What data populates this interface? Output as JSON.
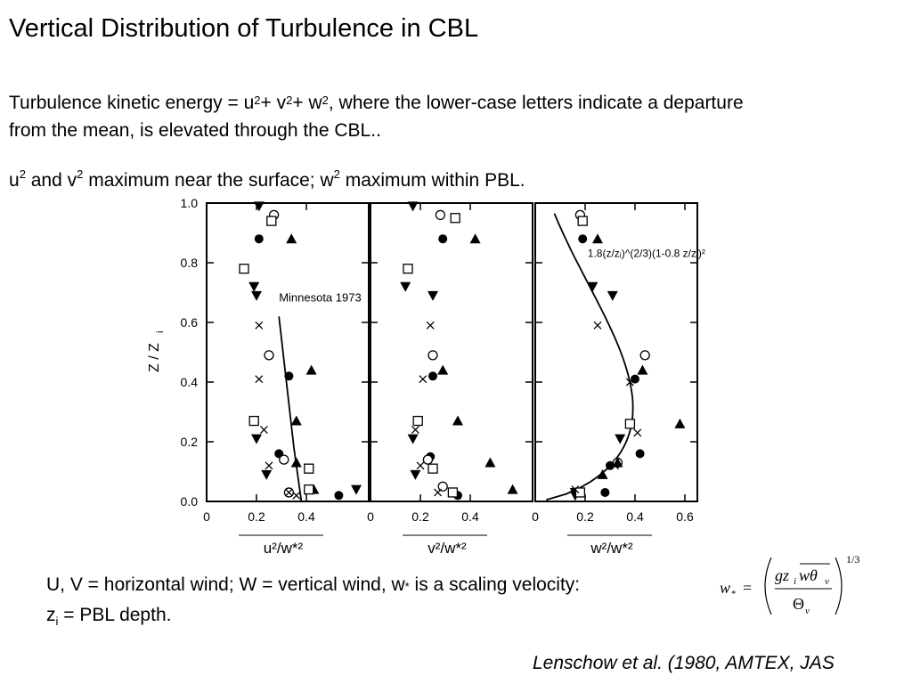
{
  "title": "Vertical Distribution of Turbulence in CBL",
  "para1": {
    "line1_a": "Turbulence kinetic energy = u",
    "sup": "2",
    "plus1": "+ v",
    "plus2": "+ w",
    "line1_b": ", where the lower-case letters indicate a departure",
    "line2": "from the mean, is elevated through the CBL.."
  },
  "para2": {
    "u": "u",
    "sup": "2",
    "and_v": " and v",
    "text_mid": " maximum near the surface; w",
    "text_end": "  maximum within  PBL."
  },
  "caption": {
    "line1": "U, V = horizontal wind; W = vertical wind, w",
    "star": "*",
    "line1_end": " is a scaling velocity:",
    "z": "z",
    "i": "i",
    "line2_end": " = PBL depth."
  },
  "formula": {
    "lhs": "w",
    "star": "*",
    "eq": "=",
    "num_g": "gz",
    "num_i": "i",
    "num_w": "wθ",
    "num_v": "v",
    "den": "Θ",
    "den_v": "v",
    "exp": "1/3"
  },
  "citation": "Lenschow et al. (1980, AMTEX, JAS",
  "chart_data": {
    "type": "scatter",
    "ylabel": "Z / Z",
    "ylabel_sub": "i",
    "ylim": [
      0,
      1.0
    ],
    "yticks": [
      "0.0",
      "0.2",
      "0.4",
      "0.6",
      "0.8",
      "1.0"
    ],
    "ytick_values": [
      0,
      0.2,
      0.4,
      0.6,
      0.8,
      1.0
    ],
    "panels": [
      {
        "xlabel": "u²/w*²",
        "xlim": [
          0,
          0.65
        ],
        "xticks": [
          "0",
          "0.2",
          "0.4"
        ],
        "xtick_values": [
          0,
          0.2,
          0.4
        ],
        "curve_label": "Minnesota 1973",
        "curve": [
          [
            0.29,
            0.62
          ],
          [
            0.32,
            0.4
          ],
          [
            0.35,
            0.18
          ],
          [
            0.38,
            0.0
          ]
        ],
        "points": {
          "filled_circle": [
            [
              0.21,
              0.88
            ],
            [
              0.33,
              0.42
            ],
            [
              0.29,
              0.16
            ],
            [
              0.53,
              0.02
            ]
          ],
          "open_circle": [
            [
              0.27,
              0.96
            ],
            [
              0.25,
              0.49
            ],
            [
              0.31,
              0.14
            ],
            [
              0.33,
              0.03
            ]
          ],
          "filled_triangle": [
            [
              0.34,
              0.88
            ],
            [
              0.42,
              0.44
            ],
            [
              0.36,
              0.27
            ],
            [
              0.36,
              0.13
            ],
            [
              0.43,
              0.04
            ]
          ],
          "filled_triangle_down": [
            [
              0.21,
              0.99
            ],
            [
              0.19,
              0.72
            ],
            [
              0.2,
              0.69
            ],
            [
              0.2,
              0.21
            ],
            [
              0.24,
              0.09
            ],
            [
              0.6,
              0.04
            ]
          ],
          "open_square": [
            [
              0.26,
              0.94
            ],
            [
              0.15,
              0.78
            ],
            [
              0.19,
              0.27
            ],
            [
              0.41,
              0.11
            ],
            [
              0.41,
              0.04
            ]
          ],
          "cross": [
            [
              0.21,
              0.59
            ],
            [
              0.21,
              0.41
            ],
            [
              0.23,
              0.24
            ],
            [
              0.25,
              0.12
            ],
            [
              0.33,
              0.03
            ],
            [
              0.36,
              0.02
            ]
          ]
        }
      },
      {
        "xlabel": "v²/w*²",
        "xlim": [
          0,
          0.65
        ],
        "xticks": [
          "0",
          "0.2",
          "0.4"
        ],
        "xtick_values": [
          0,
          0.2,
          0.4
        ],
        "curve_label": "",
        "curve": [],
        "points": {
          "filled_circle": [
            [
              0.29,
              0.88
            ],
            [
              0.25,
              0.42
            ],
            [
              0.24,
              0.15
            ],
            [
              0.35,
              0.02
            ]
          ],
          "open_circle": [
            [
              0.28,
              0.96
            ],
            [
              0.25,
              0.49
            ],
            [
              0.23,
              0.14
            ],
            [
              0.29,
              0.05
            ]
          ],
          "filled_triangle": [
            [
              0.42,
              0.88
            ],
            [
              0.29,
              0.44
            ],
            [
              0.35,
              0.27
            ],
            [
              0.48,
              0.13
            ],
            [
              0.57,
              0.04
            ]
          ],
          "filled_triangle_down": [
            [
              0.17,
              0.99
            ],
            [
              0.14,
              0.72
            ],
            [
              0.25,
              0.69
            ],
            [
              0.17,
              0.21
            ],
            [
              0.18,
              0.09
            ]
          ],
          "open_square": [
            [
              0.34,
              0.95
            ],
            [
              0.15,
              0.78
            ],
            [
              0.19,
              0.27
            ],
            [
              0.25,
              0.11
            ],
            [
              0.33,
              0.03
            ]
          ],
          "cross": [
            [
              0.24,
              0.59
            ],
            [
              0.21,
              0.41
            ],
            [
              0.18,
              0.24
            ],
            [
              0.2,
              0.12
            ],
            [
              0.27,
              0.03
            ]
          ]
        }
      },
      {
        "xlabel": "w²/w*²",
        "xlim": [
          0,
          0.65
        ],
        "xticks": [
          "0",
          "0.2",
          "0.4",
          "0.6"
        ],
        "xtick_values": [
          0,
          0.2,
          0.4,
          0.6
        ],
        "curve_label": "1.8(z/zᵢ)^(2/3)(1-0.8 z/zᵢ)²",
        "curve": [],
        "points": {
          "filled_circle": [
            [
              0.19,
              0.88
            ],
            [
              0.4,
              0.41
            ],
            [
              0.42,
              0.16
            ],
            [
              0.3,
              0.12
            ],
            [
              0.28,
              0.03
            ]
          ],
          "open_circle": [
            [
              0.18,
              0.96
            ],
            [
              0.44,
              0.49
            ],
            [
              0.33,
              0.13
            ],
            [
              0.18,
              0.03
            ]
          ],
          "filled_triangle": [
            [
              0.25,
              0.88
            ],
            [
              0.43,
              0.44
            ],
            [
              0.58,
              0.26
            ],
            [
              0.33,
              0.13
            ],
            [
              0.27,
              0.09
            ]
          ],
          "filled_triangle_down": [
            [
              0.23,
              0.72
            ],
            [
              0.31,
              0.69
            ],
            [
              0.34,
              0.21
            ],
            [
              0.16,
              0.03
            ],
            [
              0.16,
              0.02
            ]
          ],
          "open_square": [
            [
              0.19,
              0.94
            ],
            [
              0.38,
              0.26
            ],
            [
              0.18,
              0.03
            ]
          ],
          "cross": [
            [
              0.25,
              0.59
            ],
            [
              0.38,
              0.4
            ],
            [
              0.41,
              0.23
            ],
            [
              0.32,
              0.12
            ],
            [
              0.16,
              0.04
            ]
          ]
        }
      }
    ]
  }
}
